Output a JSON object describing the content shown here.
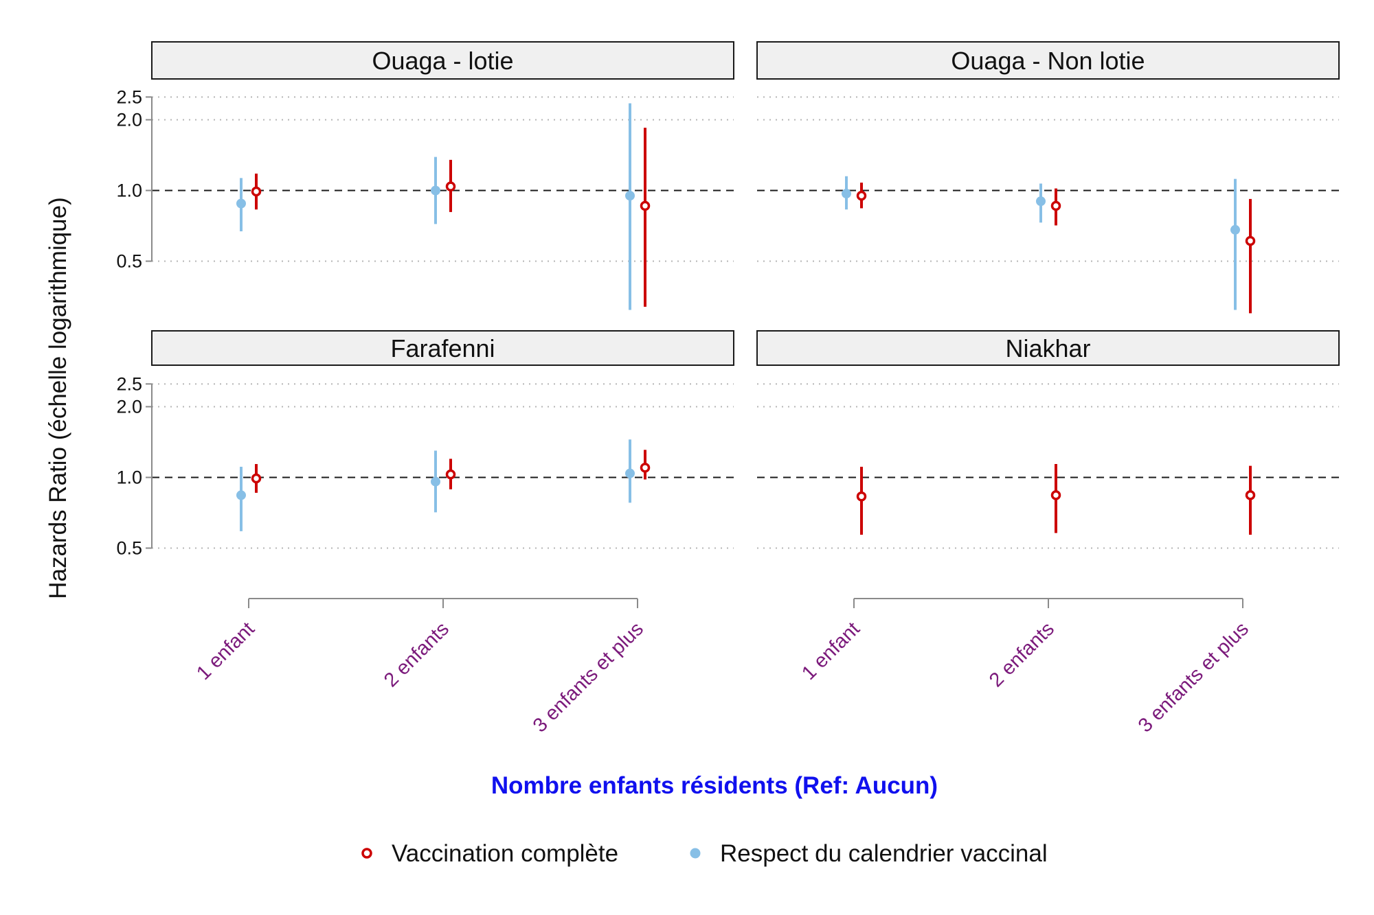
{
  "chart_data": {
    "type": "scatter",
    "xlabel": "Nombre enfants résidents (Ref: Aucun)",
    "ylabel": "Hazards Ratio (échelle logarithmique)",
    "y_scale": "log",
    "y_ticks": [
      0.5,
      1.0,
      2.0,
      2.5
    ],
    "y_tick_labels": [
      "0.5",
      "1.0",
      "2.0",
      "2.5"
    ],
    "ylim": [
      0.3,
      2.6
    ],
    "reference_line": 1.0,
    "categories": [
      "1 enfant",
      "2 enfants",
      "3 enfants et plus"
    ],
    "grid": "horizontal dotted",
    "legend_position": "bottom",
    "series_legend": [
      {
        "key": "vc",
        "name": "Vaccination complète",
        "color": "#cc0000",
        "marker": "open-circle"
      },
      {
        "key": "rc",
        "name": "Respect du calendrier vaccinal",
        "color": "#87bfe6",
        "marker": "filled-circle"
      }
    ],
    "panels": [
      {
        "title": "Ouaga - lotie",
        "series": {
          "rc": [
            {
              "est": 0.88,
              "lo": 0.67,
              "hi": 1.13
            },
            {
              "est": 1.0,
              "lo": 0.72,
              "hi": 1.39
            },
            {
              "est": 0.95,
              "lo": 0.31,
              "hi": 2.35
            }
          ],
          "vc": [
            {
              "est": 0.99,
              "lo": 0.83,
              "hi": 1.18
            },
            {
              "est": 1.04,
              "lo": 0.81,
              "hi": 1.35
            },
            {
              "est": 0.86,
              "lo": 0.32,
              "hi": 1.85
            }
          ]
        }
      },
      {
        "title": "Ouaga - Non lotie",
        "series": {
          "rc": [
            {
              "est": 0.97,
              "lo": 0.83,
              "hi": 1.15
            },
            {
              "est": 0.9,
              "lo": 0.73,
              "hi": 1.07
            },
            {
              "est": 0.68,
              "lo": 0.31,
              "hi": 1.12
            }
          ],
          "vc": [
            {
              "est": 0.95,
              "lo": 0.84,
              "hi": 1.08
            },
            {
              "est": 0.86,
              "lo": 0.71,
              "hi": 1.02
            },
            {
              "est": 0.61,
              "lo": 0.3,
              "hi": 0.92
            }
          ]
        }
      },
      {
        "title": "Farafenni",
        "series": {
          "rc": [
            {
              "est": 0.84,
              "lo": 0.59,
              "hi": 1.11
            },
            {
              "est": 0.96,
              "lo": 0.71,
              "hi": 1.3
            },
            {
              "est": 1.04,
              "lo": 0.78,
              "hi": 1.45
            }
          ],
          "vc": [
            {
              "est": 0.99,
              "lo": 0.86,
              "hi": 1.14
            },
            {
              "est": 1.03,
              "lo": 0.89,
              "hi": 1.2
            },
            {
              "est": 1.1,
              "lo": 0.98,
              "hi": 1.31
            }
          ]
        }
      },
      {
        "title": "Niakhar",
        "series": {
          "rc": [],
          "vc": [
            {
              "est": 0.83,
              "lo": 0.57,
              "hi": 1.11
            },
            {
              "est": 0.84,
              "lo": 0.58,
              "hi": 1.14
            },
            {
              "est": 0.84,
              "lo": 0.57,
              "hi": 1.12
            }
          ]
        }
      }
    ]
  }
}
